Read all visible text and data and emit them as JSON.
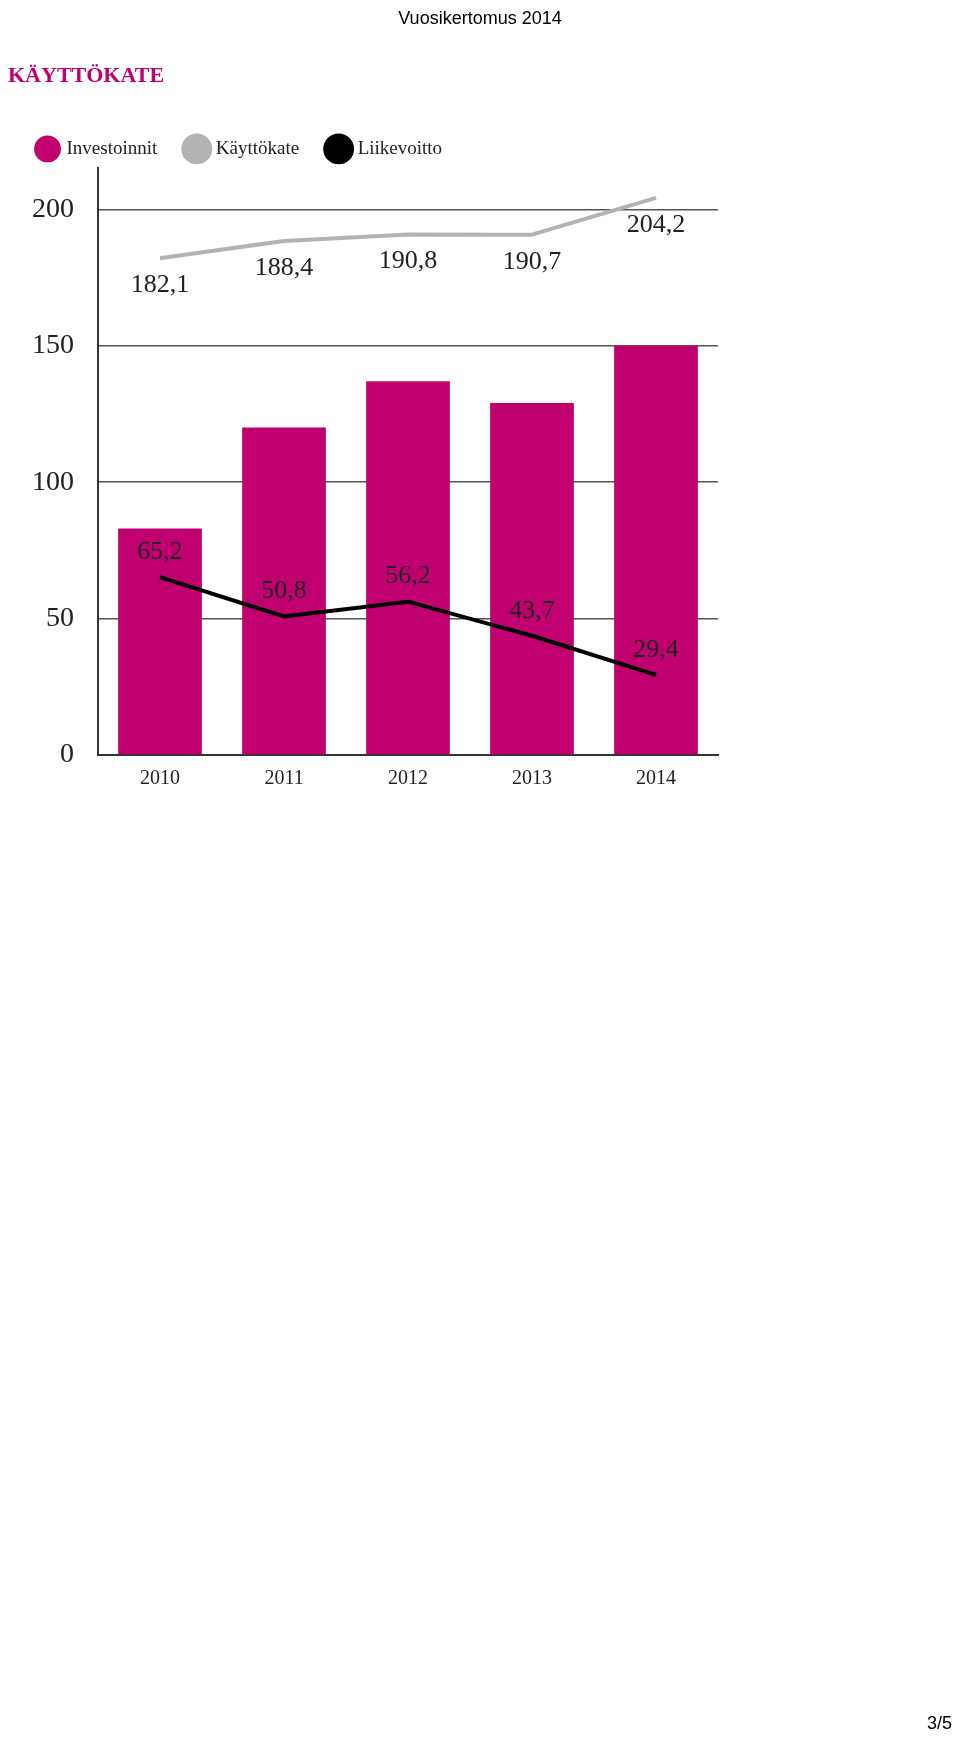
{
  "chart_data": {
    "type": "bar",
    "title": "KÄYTTÖKATE",
    "categories": [
      "2010",
      "2011",
      "2012",
      "2013",
      "2014"
    ],
    "series": [
      {
        "name": "Investoinnit",
        "color": "#c0006f",
        "values": [
          83,
          120,
          137,
          129,
          150
        ]
      },
      {
        "name": "Käyttökate",
        "type": "line",
        "color": "#b3b3b3",
        "values": [
          182.1,
          188.4,
          190.8,
          190.7,
          204.2
        ],
        "value_labels": [
          "182,1",
          "188,4",
          "190,8",
          "190,7",
          "204,2"
        ]
      },
      {
        "name": "Liikevoitto",
        "type": "line",
        "color": "#000000",
        "values": [
          65.2,
          50.8,
          56.2,
          43.7,
          29.4
        ],
        "value_labels": [
          "65,2",
          "50,8",
          "56,2",
          "43,7",
          "29,4"
        ]
      }
    ],
    "ylim": [
      0,
      215
    ],
    "yticks": [
      0,
      50,
      100,
      150,
      200
    ],
    "grid": "y",
    "legend": "top",
    "marker": "none",
    "annotations": [
      "Vuosikertomus 2014",
      "3/5"
    ]
  }
}
